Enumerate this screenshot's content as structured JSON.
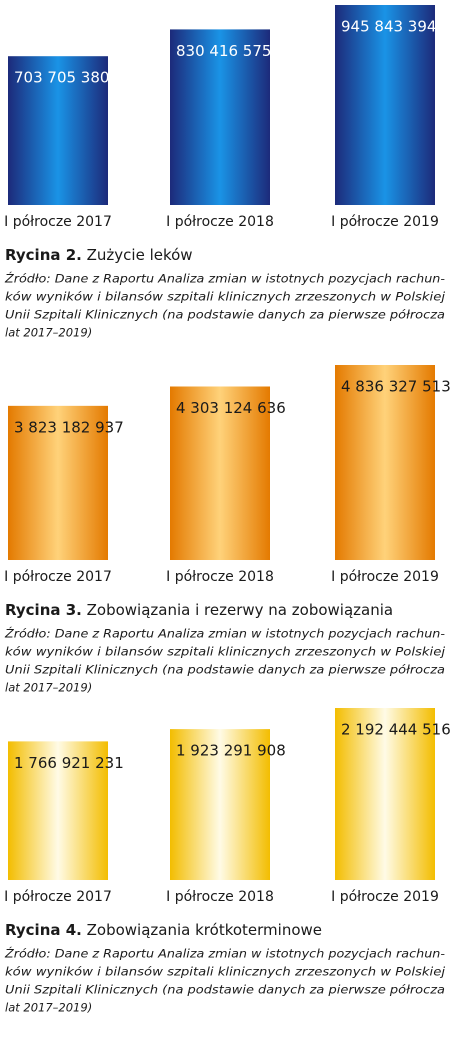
{
  "chart_data": [
    {
      "type": "bar",
      "categories": [
        "I półrocze 2017",
        "I półrocze 2018",
        "I półrocze 2019"
      ],
      "values": [
        703705380,
        830416575,
        945843394
      ],
      "value_labels": [
        "703 705 380",
        "830 416 575",
        "945 843 394"
      ],
      "colors": [
        "#1c2a7a",
        "#1a93e6"
      ],
      "label_color": "#ffffff",
      "caption_label": "Rycina 2.",
      "caption": "Zużycie leków",
      "source": [
        "Źródło: Dane z Raportu Analiza zmian w istotnych pozycjach rachun-",
        "ków wyników i bilansów szpitali klinicznych zrzeszonych w Polskiej",
        "Unii Szpitali Klinicznych (na podstawie danych za pierwsze półrocza",
        "lat 2017–2019)"
      ]
    },
    {
      "type": "bar",
      "categories": [
        "I półrocze 2017",
        "I półrocze 2018",
        "I półrocze 2019"
      ],
      "values": [
        3823182937,
        4303124636,
        4836327513
      ],
      "value_labels": [
        "3 823 182 937",
        "4 303 124 636",
        "4 836 327 513"
      ],
      "colors": [
        "#e47a00",
        "#ffd27a"
      ],
      "label_color": "#1a1a1a",
      "caption_label": "Rycina 3.",
      "caption": "Zobowiązania i rezerwy na zobowiązania",
      "source": [
        "Źródło: Dane z Raportu Analiza zmian w istotnych pozycjach rachun-",
        "ków wyników i bilansów szpitali klinicznych zrzeszonych w Polskiej",
        "Unii Szpitali Klinicznych (na podstawie danych za pierwsze półrocza",
        "lat 2017–2019)"
      ]
    },
    {
      "type": "bar",
      "categories": [
        "I półrocze 2017",
        "I półrocze 2018",
        "I półrocze 2019"
      ],
      "values": [
        1766921231,
        1923291908,
        2192444516
      ],
      "value_labels": [
        "1 766 921 231",
        "1 923 291 908",
        "2 192 444 516"
      ],
      "colors": [
        "#f3bd00",
        "#fffbe6"
      ],
      "label_color": "#1a1a1a",
      "caption_label": "Rycina 4.",
      "caption": "Zobowiązania krótkoterminowe",
      "source": [
        "Źródło: Dane z Raportu Analiza zmian w istotnych pozycjach rachun-",
        "ków wyników i bilansów szpitali klinicznych zrzeszonych w Polskiej",
        "Unii Szpitali Klinicznych (na podstawie danych za pierwsze półrocza",
        "lat 2017–2019)"
      ]
    }
  ]
}
